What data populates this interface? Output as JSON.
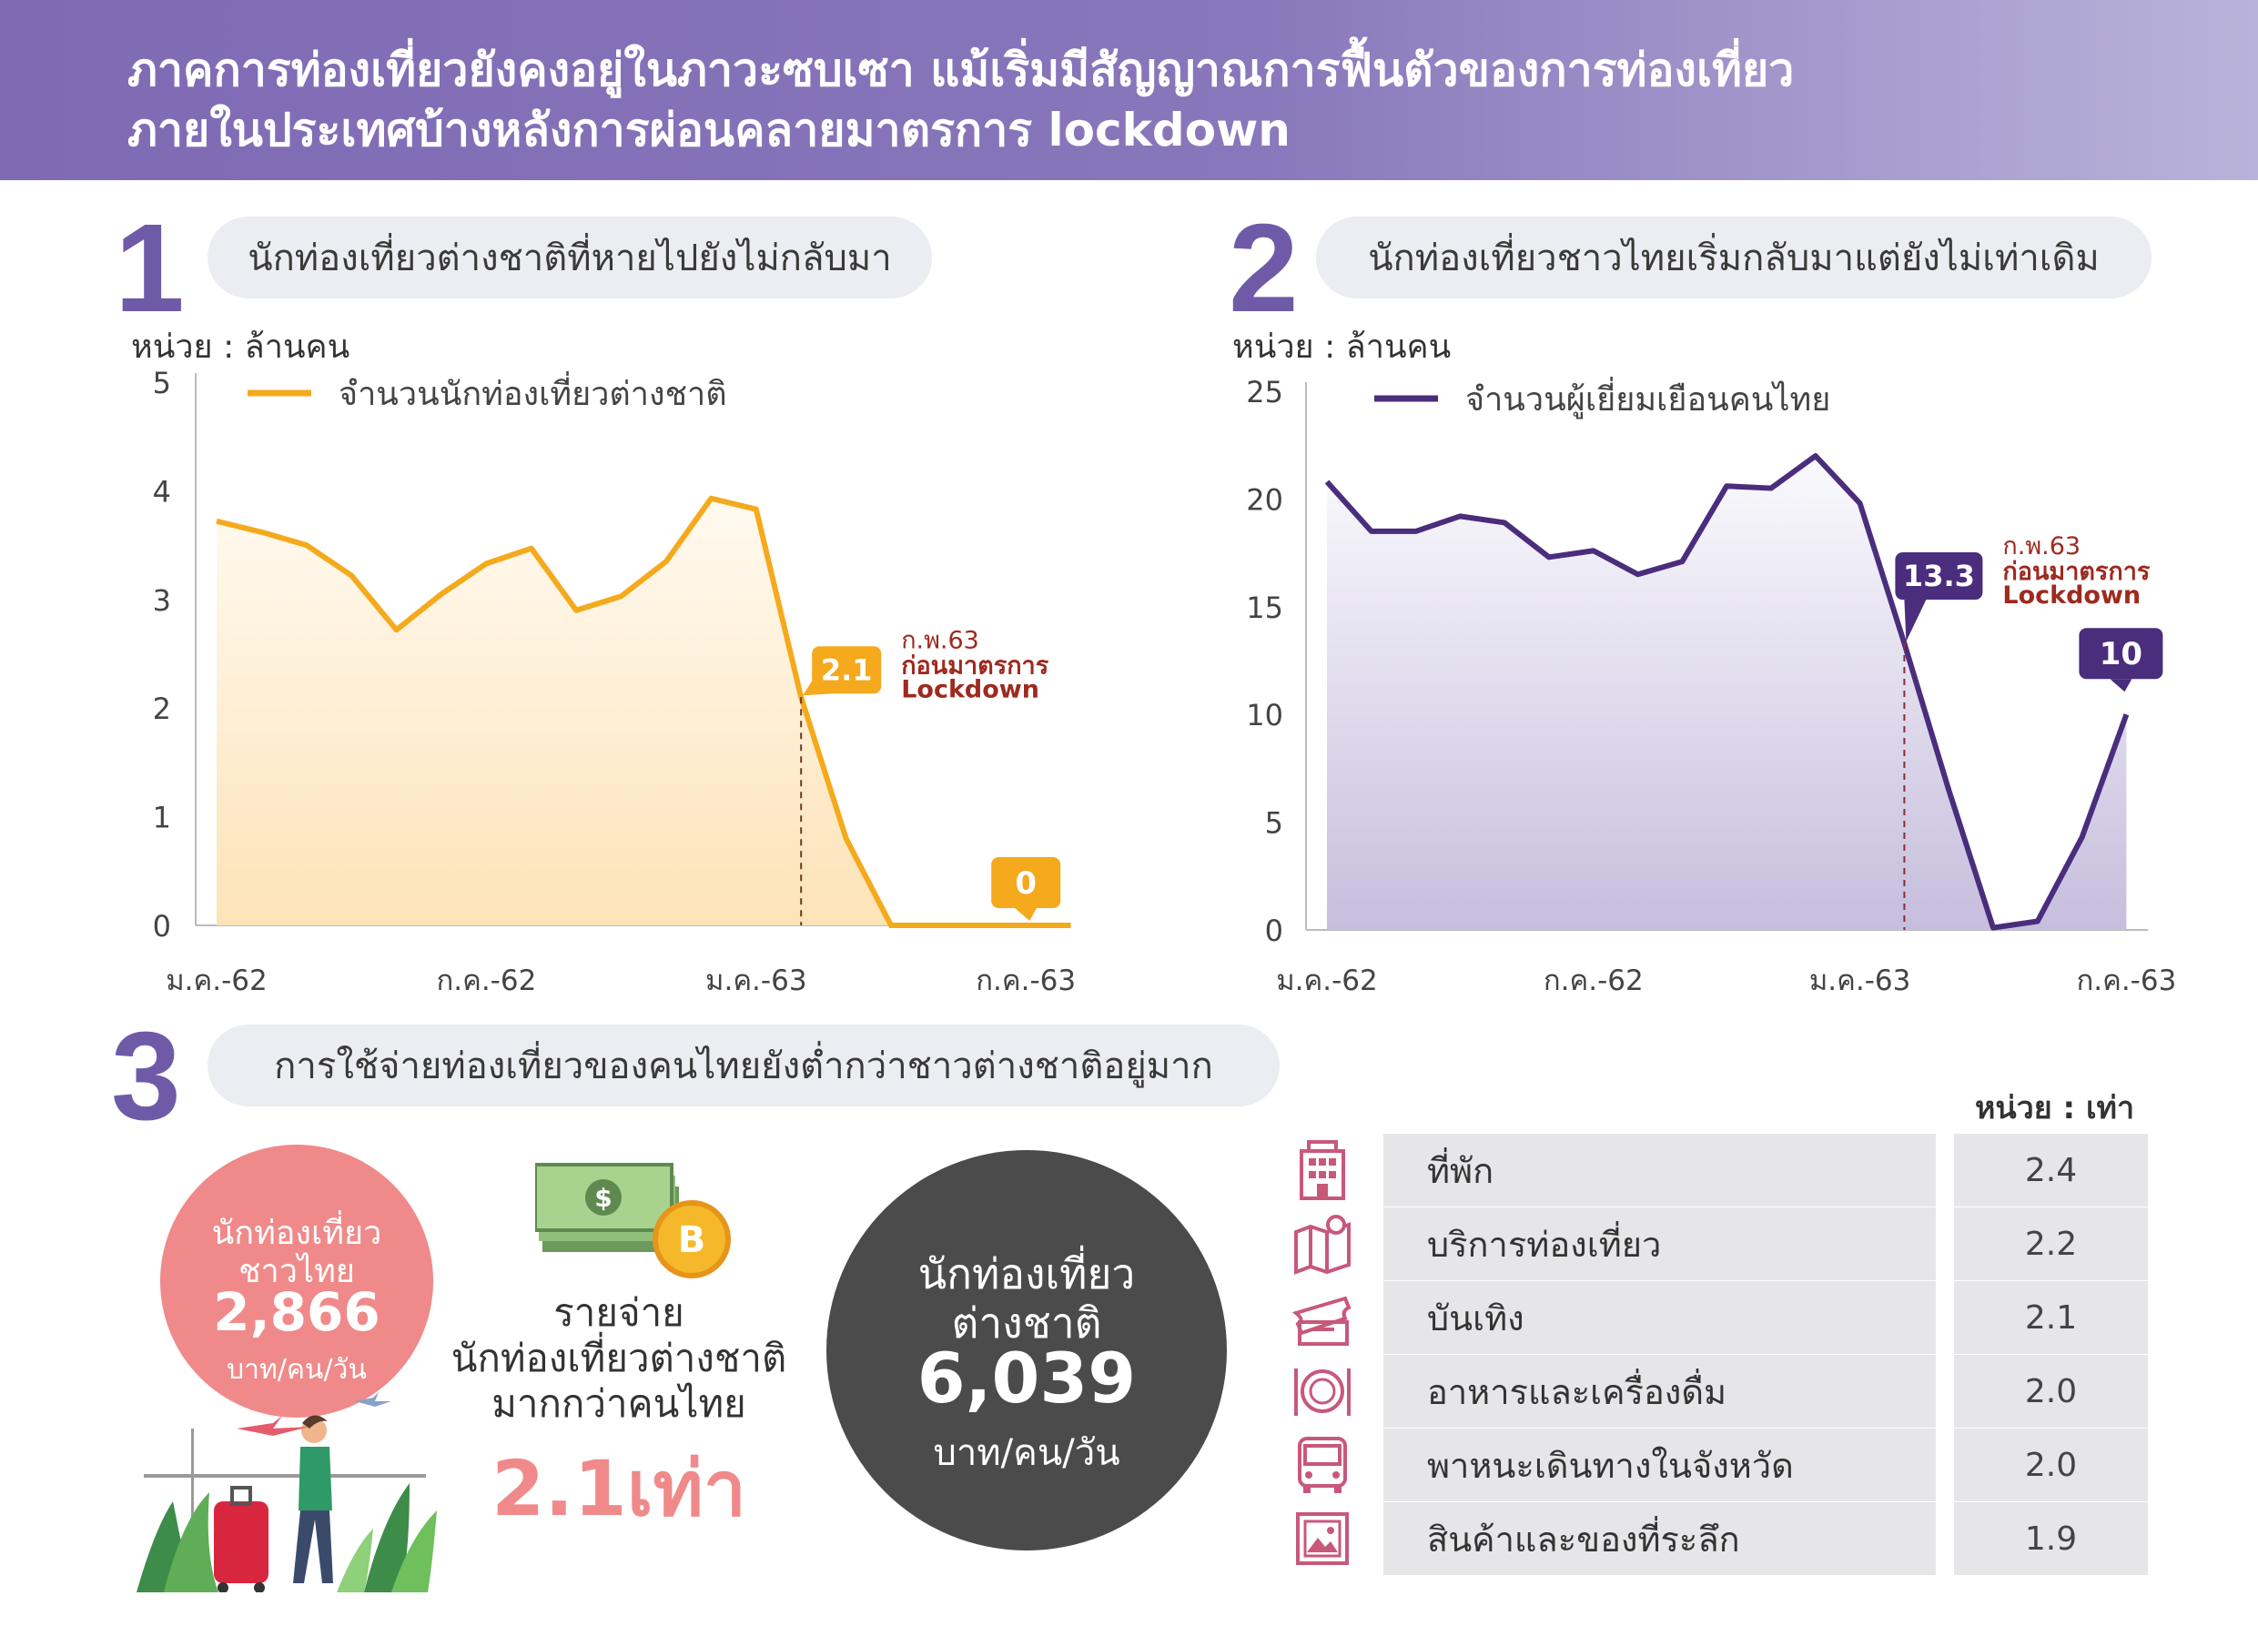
{
  "header": {
    "line1": "ภาคการท่องเที่ยวยังคงอยู่ในภาวะซบเซา แม้เริ่มมีสัญญาณการฟื้นตัวของการท่องเที่ยว",
    "line2": "ภายในประเทศบ้างหลังการผ่อนคลายมาตรการ lockdown"
  },
  "section1": {
    "number": "1",
    "title": "นักท่องเที่ยวต่างชาติที่หายไปยังไม่กลับมา",
    "unit": "หน่วย : ล้านคน"
  },
  "section2": {
    "number": "2",
    "title": "นักท่องเที่ยวชาวไทยเริ่มกลับมาแต่ยังไม่เท่าเดิม",
    "unit": "หน่วย : ล้านคน"
  },
  "section3": {
    "number": "3",
    "title": "การใช้จ่ายท่องเที่ยวของคนไทยยังต่ำกว่าชาวต่างชาติอยู่มาก"
  },
  "chart_data": [
    {
      "type": "area",
      "series": [
        {
          "name": "จำนวนนักท่องเที่ยวต่างชาติ",
          "color": "#f5a91c",
          "values": [
            3.72,
            3.62,
            3.5,
            3.22,
            2.72,
            3.05,
            3.33,
            3.47,
            2.9,
            3.03,
            3.35,
            3.93,
            3.83,
            2.1,
            0.8,
            0,
            0,
            0,
            0,
            0
          ]
        }
      ],
      "x_tick_labels": [
        "ม.ค.-62",
        "ก.ค.-62",
        "ม.ค.-63",
        "ก.ค.-63"
      ],
      "x_tick_indices": [
        0,
        6,
        12,
        18
      ],
      "ylim": [
        0,
        5
      ],
      "yticks": [
        0,
        1,
        2,
        3,
        4,
        5
      ],
      "annotations": [
        {
          "index": 13,
          "value": 2.1,
          "label": "2.1",
          "note1": "ก.พ.63",
          "note2": "ก่อนมาตรการ",
          "note3": "Lockdown"
        },
        {
          "index": 18,
          "value": 0,
          "label": "0"
        }
      ]
    },
    {
      "type": "area",
      "series": [
        {
          "name": "จำนวนผู้เยี่ยมเยือนคนไทย",
          "color": "#4a2d7c",
          "values": [
            20.8,
            18.5,
            18.5,
            19.2,
            18.9,
            17.3,
            17.6,
            16.5,
            17.1,
            20.6,
            20.5,
            22.0,
            19.8,
            13.3,
            6.5,
            0.1,
            0.4,
            4.3,
            10.0
          ]
        }
      ],
      "x_tick_labels": [
        "ม.ค.-62",
        "ก.ค.-62",
        "ม.ค.-63",
        "ก.ค.-63"
      ],
      "x_tick_indices": [
        0,
        6,
        12,
        18
      ],
      "ylim": [
        0,
        25
      ],
      "yticks": [
        0,
        5,
        10,
        15,
        20,
        25
      ],
      "annotations": [
        {
          "index": 13,
          "value": 13.3,
          "label": "13.3",
          "note1": "ก.พ.63",
          "note2": "ก่อนมาตรการ",
          "note3": "Lockdown"
        },
        {
          "index": 18,
          "value": 10,
          "label": "10"
        }
      ]
    },
    {
      "type": "table",
      "unit": "หน่วย : เท่า",
      "rows": [
        {
          "label": "ที่พัก",
          "value": "2.4",
          "icon": "hotel-icon"
        },
        {
          "label": "บริการท่องเที่ยว",
          "value": "2.2",
          "icon": "map-pin-icon"
        },
        {
          "label": "บันเทิง",
          "value": "2.1",
          "icon": "ticket-icon"
        },
        {
          "label": "อาหารและเครื่องดื่ม",
          "value": "2.0",
          "icon": "plate-icon"
        },
        {
          "label": "พาหนะเดินทางในจังหวัด",
          "value": "2.0",
          "icon": "bus-icon"
        },
        {
          "label": "สินค้าและของที่ระลึก",
          "value": "1.9",
          "icon": "picture-icon"
        }
      ]
    }
  ],
  "spending": {
    "thai_label1": "นักท่องเที่ยว",
    "thai_label2": "ชาวไทย",
    "thai_value": "2,866",
    "thai_unit": "บาท/คน/วัน",
    "foreign_label1": "นักท่องเที่ยว",
    "foreign_label2": "ต่างชาติ",
    "foreign_value": "6,039",
    "foreign_unit": "บาท/คน/วัน",
    "compare1": "รายจ่าย",
    "compare2": "นักท่องเที่ยวต่างชาติ",
    "compare3": "มากกว่าคนไทย",
    "compare_value": "2.1เท่า"
  },
  "colors": {
    "purple": "#6f5aa8",
    "orange": "#f5a91c",
    "dark_purple": "#4a2d7c",
    "pink": "#f08a8a",
    "note_red": "#9e2a1f"
  }
}
